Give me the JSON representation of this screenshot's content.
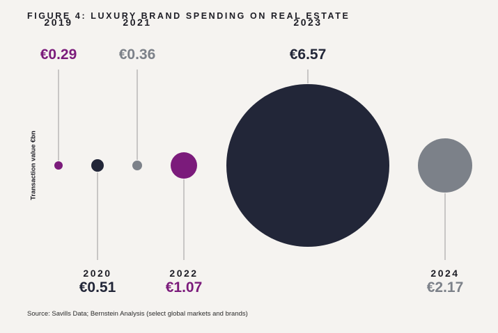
{
  "chart_data": {
    "type": "bubble",
    "title": "FIGURE 4: LUXURY BRAND SPENDING ON REAL ESTATE",
    "ylabel": "Transaction value €bn",
    "xlabel": "",
    "unit": "€bn",
    "points": [
      {
        "year": "2019",
        "value": 0.29,
        "label": "€0.29",
        "color": "#7b1b7b",
        "label_position": "top"
      },
      {
        "year": "2020",
        "value": 0.51,
        "label": "€0.51",
        "color": "#222638",
        "label_position": "bottom"
      },
      {
        "year": "2021",
        "value": 0.36,
        "label": "€0.36",
        "color": "#7c8189",
        "label_position": "top"
      },
      {
        "year": "2022",
        "value": 1.07,
        "label": "€1.07",
        "color": "#7b1b7b",
        "label_position": "bottom"
      },
      {
        "year": "2023",
        "value": 6.57,
        "label": "€6.57",
        "color": "#222638",
        "label_position": "top"
      },
      {
        "year": "2024",
        "value": 2.17,
        "label": "€2.17",
        "color": "#7c8189",
        "label_position": "bottom"
      }
    ],
    "source": "Source: Savills Data; Bernstein Analysis (select global markets and brands)"
  }
}
